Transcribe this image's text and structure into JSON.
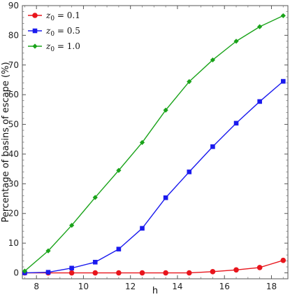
{
  "chart_data": {
    "type": "line",
    "xlabel": "h",
    "ylabel": "Percentage of basins of escape (%)",
    "xlim": [
      7.4,
      18.7
    ],
    "ylim": [
      -2,
      90
    ],
    "x_ticks": [
      8,
      10,
      12,
      14,
      16,
      18
    ],
    "y_ticks": [
      0,
      10,
      20,
      30,
      40,
      50,
      60,
      70,
      80,
      90
    ],
    "grid": false,
    "legend_position": "top-left",
    "x": [
      7.5,
      8.5,
      9.5,
      10.5,
      11.5,
      12.5,
      13.5,
      14.5,
      15.5,
      16.5,
      17.5,
      18.5
    ],
    "series": [
      {
        "name": "z0 = 0.1",
        "legend_var": "z",
        "legend_sub": "0",
        "legend_rest": " = 0.1",
        "color": "#e8151c",
        "marker": "circle",
        "values": [
          0.0,
          0.0,
          0.0,
          0.0,
          0.0,
          0.0,
          0.0,
          0.0,
          0.4,
          1.0,
          1.8,
          4.2
        ]
      },
      {
        "name": "z0 = 0.5",
        "legend_var": "z",
        "legend_sub": "0",
        "legend_rest": " = 0.5",
        "color": "#1a1aee",
        "marker": "square",
        "values": [
          0.0,
          0.2,
          1.6,
          3.6,
          8.0,
          15.0,
          25.3,
          34.0,
          42.5,
          50.4,
          57.7,
          64.5
        ]
      },
      {
        "name": "z0 = 1.0",
        "legend_var": "z",
        "legend_sub": "0",
        "legend_rest": " = 1.0",
        "color": "#1aa31a",
        "marker": "diamond",
        "values": [
          0.6,
          7.4,
          16.0,
          25.4,
          34.5,
          43.9,
          54.8,
          64.4,
          71.7,
          78.0,
          82.9,
          86.6
        ]
      }
    ]
  }
}
